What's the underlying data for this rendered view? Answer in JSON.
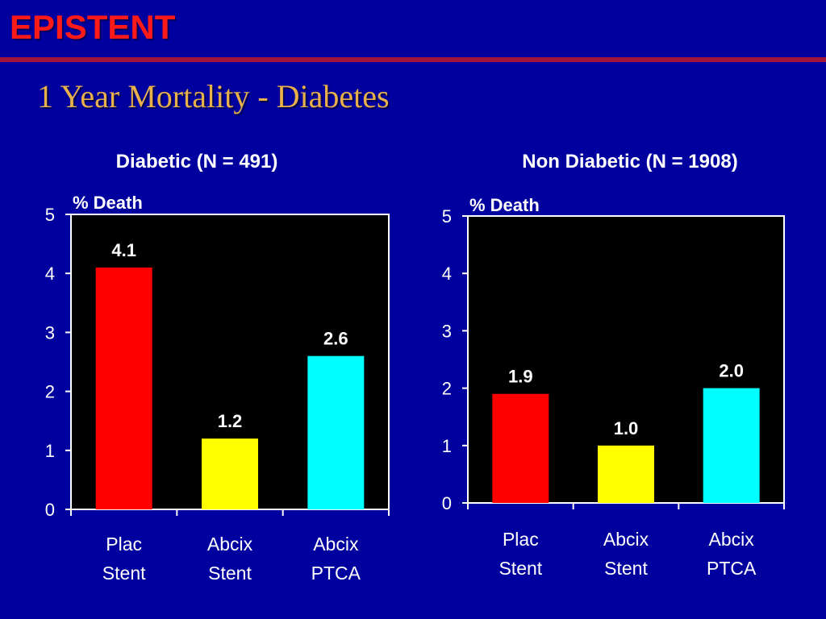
{
  "header": {
    "title": "EPISTENT",
    "subtitle": "1 Year Mortality - Diabetes"
  },
  "colors": {
    "background": "#00009e",
    "title": "#ff1a1a",
    "rule": "#a0143c",
    "subtitle": "#e8b04a",
    "plot_bg": "#000000",
    "bar_plac_stent": "#ff0000",
    "bar_abcix_stent": "#ffff00",
    "bar_abcix_ptca": "#00ffff"
  },
  "chart_data": [
    {
      "type": "bar",
      "title": "Diabetic (N = 491)",
      "ylabel": "% Death",
      "categories": [
        [
          "Plac",
          "Stent"
        ],
        [
          "Abcix",
          "Stent"
        ],
        [
          "Abcix",
          "PTCA"
        ]
      ],
      "values": [
        4.1,
        1.2,
        2.6
      ],
      "value_labels": [
        "4.1",
        "1.2",
        "2.6"
      ],
      "bar_colors": [
        "#ff0000",
        "#ffff00",
        "#00ffff"
      ],
      "ylim": [
        0,
        5
      ],
      "yticks": [
        0,
        1,
        2,
        3,
        4,
        5
      ],
      "grid": false,
      "legend": "none"
    },
    {
      "type": "bar",
      "title": "Non Diabetic (N = 1908)",
      "ylabel": "% Death",
      "categories": [
        [
          "Plac",
          "Stent"
        ],
        [
          "Abcix",
          "Stent"
        ],
        [
          "Abcix",
          "PTCA"
        ]
      ],
      "values": [
        1.9,
        1.0,
        2.0
      ],
      "value_labels": [
        "1.9",
        "1.0",
        "2.0"
      ],
      "bar_colors": [
        "#ff0000",
        "#ffff00",
        "#00ffff"
      ],
      "ylim": [
        0,
        5
      ],
      "yticks": [
        0,
        1,
        2,
        3,
        4,
        5
      ],
      "grid": false,
      "legend": "none"
    }
  ]
}
